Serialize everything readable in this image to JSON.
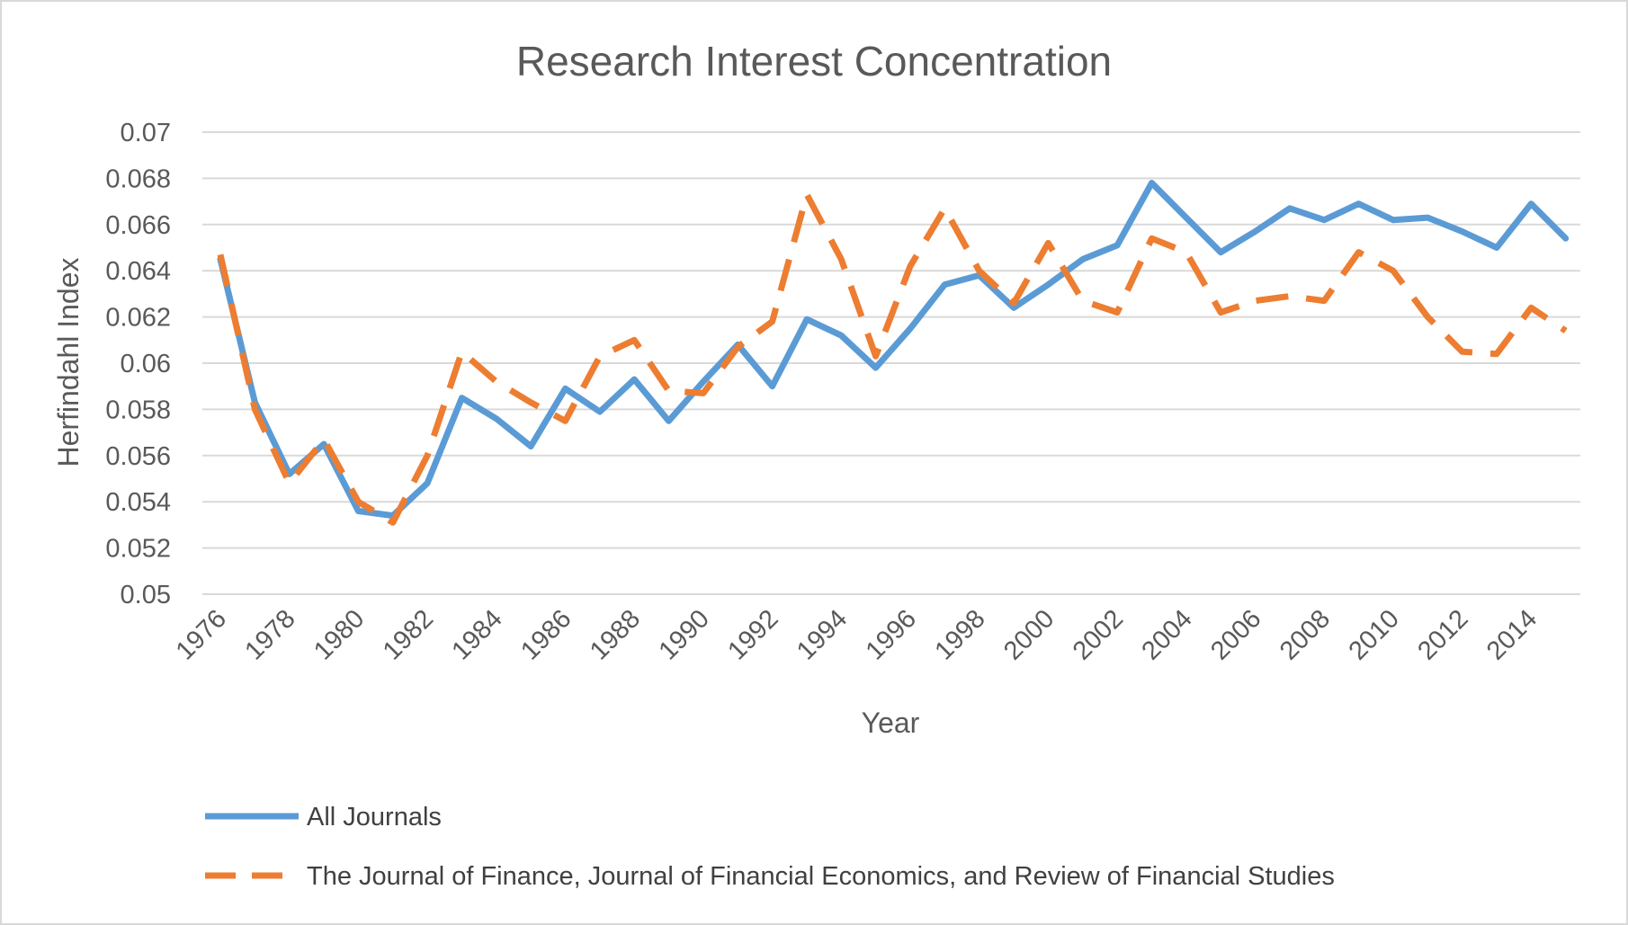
{
  "chart_data": {
    "type": "line",
    "title": "Research Interest Concentration",
    "xlabel": "Year",
    "ylabel": "Herfindahl Index",
    "ylim": [
      0.05,
      0.07
    ],
    "yticks": [
      "0.05",
      "0.052",
      "0.054",
      "0.056",
      "0.058",
      "0.06",
      "0.062",
      "0.064",
      "0.066",
      "0.068",
      "0.07"
    ],
    "xticks": [
      "1976",
      "1978",
      "1980",
      "1982",
      "1984",
      "1986",
      "1988",
      "1990",
      "1992",
      "1994",
      "1996",
      "1998",
      "2000",
      "2002",
      "2004",
      "2006",
      "2008",
      "2010",
      "2012",
      "2014"
    ],
    "grid": true,
    "legend_position": "bottom",
    "x": [
      1976,
      1977,
      1978,
      1979,
      1980,
      1981,
      1982,
      1983,
      1984,
      1985,
      1986,
      1987,
      1988,
      1989,
      1990,
      1991,
      1992,
      1993,
      1994,
      1995,
      1996,
      1997,
      1998,
      1999,
      2000,
      2001,
      2002,
      2003,
      2004,
      2005,
      2006,
      2007,
      2008,
      2009,
      2010,
      2011,
      2012,
      2013,
      2014,
      2015
    ],
    "series": [
      {
        "name": "All Journals",
        "color": "#5b9bd5",
        "style": "solid",
        "values": [
          0.0645,
          0.0583,
          0.0552,
          0.0565,
          0.0536,
          0.0534,
          0.0548,
          0.0585,
          0.0576,
          0.0564,
          0.0589,
          0.0579,
          0.0593,
          0.0575,
          0.0592,
          0.0608,
          0.059,
          0.0619,
          0.0612,
          0.0598,
          0.0615,
          0.0634,
          0.0638,
          0.0624,
          0.0634,
          0.0645,
          0.0651,
          0.0678,
          0.0663,
          0.0648,
          0.0657,
          0.0667,
          0.0662,
          0.0669,
          0.0662,
          0.0663,
          0.0657,
          0.065,
          0.0669,
          0.0654
        ]
      },
      {
        "name": "The Journal of Finance, Journal of Financial Economics, and Review of Financial Studies",
        "color": "#ed7d31",
        "style": "dashed",
        "values": [
          0.0647,
          0.058,
          0.0548,
          0.0567,
          0.054,
          0.0531,
          0.056,
          0.0605,
          0.0592,
          0.0583,
          0.0575,
          0.0603,
          0.061,
          0.0588,
          0.0587,
          0.0607,
          0.0618,
          0.0673,
          0.0645,
          0.0603,
          0.0642,
          0.0667,
          0.064,
          0.0626,
          0.0652,
          0.0627,
          0.0622,
          0.0654,
          0.0648,
          0.0622,
          0.0627,
          0.0629,
          0.0627,
          0.0648,
          0.064,
          0.062,
          0.0605,
          0.0604,
          0.0624,
          0.0614
        ]
      }
    ]
  }
}
